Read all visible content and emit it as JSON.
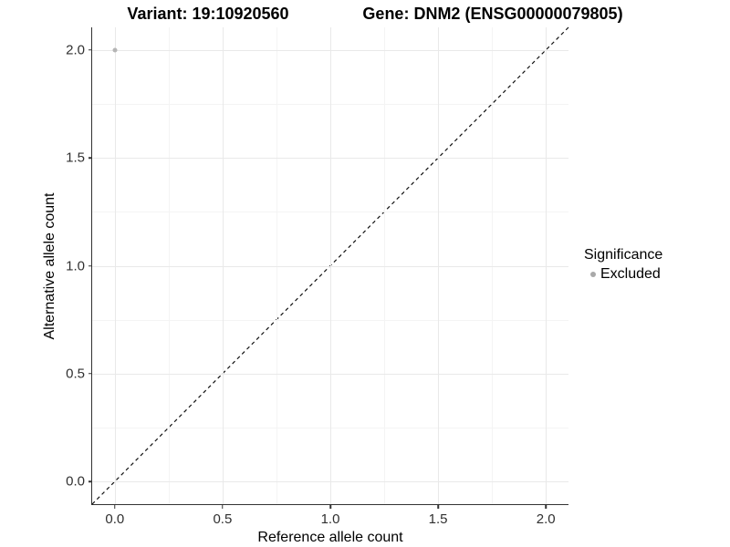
{
  "chart_data": {
    "type": "scatter",
    "titles": {
      "left": "Variant: 19:10920560",
      "right": "Gene: DNM2 (ENSG00000079805)"
    },
    "xlabel": "Reference allele count",
    "ylabel": "Alternative allele count",
    "xlim": [
      -0.105,
      2.105
    ],
    "ylim": [
      -0.105,
      2.105
    ],
    "x_ticks": {
      "values": [
        0.0,
        0.5,
        1.0,
        1.5,
        2.0
      ],
      "labels": [
        "0.0",
        "0.5",
        "1.0",
        "1.5",
        "2.0"
      ]
    },
    "y_ticks": {
      "values": [
        0.0,
        0.5,
        1.0,
        1.5,
        2.0
      ],
      "labels": [
        "0.0",
        "0.5",
        "1.0",
        "1.5",
        "2.0"
      ]
    },
    "minor_ticks": [
      0.25,
      0.75,
      1.25,
      1.75
    ],
    "grid": {
      "major": true,
      "minor": true
    },
    "reference_line": {
      "kind": "identity",
      "from": [
        -0.105,
        -0.105
      ],
      "to": [
        2.105,
        2.105
      ],
      "style": "dashed",
      "color": "#111111"
    },
    "series": [
      {
        "name": "Excluded",
        "color": "#b5b5b5",
        "points": [
          {
            "x": 0.0,
            "y": 2.0
          }
        ]
      }
    ],
    "legend": {
      "title": "Significance",
      "position": "right",
      "items": [
        {
          "label": "Excluded",
          "color": "#a9a9a9",
          "marker": "circle-icon"
        }
      ]
    },
    "colors": {
      "grid_major": "#e9e9e9",
      "grid_minor": "#f4f4f4",
      "axis_line": "#333333",
      "tick_label": "#303030",
      "text": "#000000"
    }
  }
}
